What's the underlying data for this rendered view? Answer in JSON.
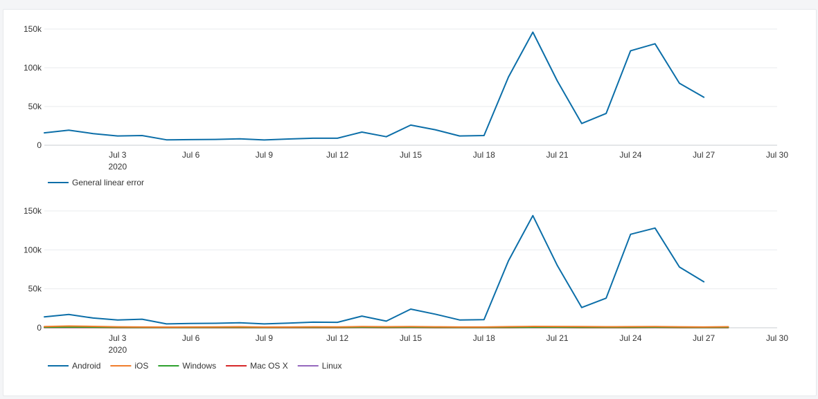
{
  "chart_data": [
    {
      "type": "line",
      "x_ticks": [
        "Jul 3",
        "Jul 6",
        "Jul 9",
        "Jul 12",
        "Jul 15",
        "Jul 18",
        "Jul 21",
        "Jul 24",
        "Jul 27",
        "Jul 30"
      ],
      "x_year_label": "2020",
      "y_ticks": [
        "0",
        "50k",
        "100k",
        "150k"
      ],
      "ylim": [
        0,
        150000
      ],
      "xlim": [
        "Jun 30",
        "Jul 30"
      ],
      "grid": true,
      "legend_position": "bottom-left",
      "series": [
        {
          "name": "General linear error",
          "color": "#0b6ea8",
          "x": [
            "Jun 30",
            "Jul 1",
            "Jul 2",
            "Jul 3",
            "Jul 4",
            "Jul 5",
            "Jul 6",
            "Jul 7",
            "Jul 8",
            "Jul 9",
            "Jul 10",
            "Jul 11",
            "Jul 12",
            "Jul 13",
            "Jul 14",
            "Jul 15",
            "Jul 16",
            "Jul 17",
            "Jul 18",
            "Jul 19",
            "Jul 20",
            "Jul 21",
            "Jul 22",
            "Jul 23",
            "Jul 24",
            "Jul 25",
            "Jul 26",
            "Jul 27",
            "Jul 28"
          ],
          "values": [
            16000,
            19500,
            15000,
            12000,
            12500,
            7000,
            7200,
            7500,
            8200,
            6800,
            8000,
            9000,
            9000,
            17000,
            11000,
            26000,
            20000,
            12000,
            12500,
            88000,
            146000,
            83000,
            28000,
            41000,
            122000,
            131000,
            80000,
            62000,
            null
          ]
        }
      ]
    },
    {
      "type": "line",
      "x_ticks": [
        "Jul 3",
        "Jul 6",
        "Jul 9",
        "Jul 12",
        "Jul 15",
        "Jul 18",
        "Jul 21",
        "Jul 24",
        "Jul 27",
        "Jul 30"
      ],
      "x_year_label": "2020",
      "y_ticks": [
        "0",
        "50k",
        "100k",
        "150k"
      ],
      "ylim": [
        0,
        150000
      ],
      "xlim": [
        "Jun 30",
        "Jul 30"
      ],
      "grid": true,
      "legend_position": "bottom-left",
      "series": [
        {
          "name": "Android",
          "color": "#0b6ea8",
          "x": [
            "Jun 30",
            "Jul 1",
            "Jul 2",
            "Jul 3",
            "Jul 4",
            "Jul 5",
            "Jul 6",
            "Jul 7",
            "Jul 8",
            "Jul 9",
            "Jul 10",
            "Jul 11",
            "Jul 12",
            "Jul 13",
            "Jul 14",
            "Jul 15",
            "Jul 16",
            "Jul 17",
            "Jul 18",
            "Jul 19",
            "Jul 20",
            "Jul 21",
            "Jul 22",
            "Jul 23",
            "Jul 24",
            "Jul 25",
            "Jul 26",
            "Jul 27",
            "Jul 28"
          ],
          "values": [
            14000,
            17000,
            12500,
            10000,
            11000,
            5000,
            5500,
            5800,
            6500,
            5000,
            6000,
            7200,
            7000,
            15000,
            8500,
            24000,
            17500,
            10000,
            10500,
            86000,
            144000,
            80000,
            26000,
            38000,
            120000,
            128000,
            78000,
            59000,
            null
          ]
        },
        {
          "name": "iOS",
          "color": "#f07c2a",
          "x": [
            "Jun 30",
            "Jul 1",
            "Jul 2",
            "Jul 3",
            "Jul 4",
            "Jul 5",
            "Jul 6",
            "Jul 7",
            "Jul 8",
            "Jul 9",
            "Jul 10",
            "Jul 11",
            "Jul 12",
            "Jul 13",
            "Jul 14",
            "Jul 15",
            "Jul 16",
            "Jul 17",
            "Jul 18",
            "Jul 19",
            "Jul 20",
            "Jul 21",
            "Jul 22",
            "Jul 23",
            "Jul 24",
            "Jul 25",
            "Jul 26",
            "Jul 27",
            "Jul 28"
          ],
          "values": [
            1500,
            2200,
            1800,
            1200,
            1000,
            900,
            1000,
            1100,
            1300,
            900,
            1000,
            1200,
            1100,
            1500,
            1300,
            1500,
            1200,
            1000,
            1000,
            1400,
            1800,
            1700,
            1500,
            1300,
            1400,
            1500,
            1200,
            1000,
            1300
          ]
        },
        {
          "name": "Windows",
          "color": "#2ca02c",
          "x": [
            "Jun 30",
            "Jul 1",
            "Jul 2",
            "Jul 3",
            "Jul 4",
            "Jul 5",
            "Jul 6",
            "Jul 7",
            "Jul 8",
            "Jul 9",
            "Jul 10",
            "Jul 11",
            "Jul 12",
            "Jul 13",
            "Jul 14",
            "Jul 15",
            "Jul 16",
            "Jul 17",
            "Jul 18",
            "Jul 19",
            "Jul 20",
            "Jul 21",
            "Jul 22",
            "Jul 23",
            "Jul 24",
            "Jul 25",
            "Jul 26",
            "Jul 27",
            "Jul 28"
          ],
          "values": [
            600,
            800,
            700,
            500,
            400,
            400,
            400,
            500,
            500,
            400,
            500,
            500,
            500,
            600,
            500,
            600,
            500,
            400,
            400,
            500,
            600,
            600,
            500,
            500,
            500,
            600,
            500,
            400,
            500
          ]
        },
        {
          "name": "Mac OS X",
          "color": "#d62728",
          "x": [
            "Jun 30",
            "Jul 1",
            "Jul 2",
            "Jul 3",
            "Jul 4",
            "Jul 5",
            "Jul 6",
            "Jul 7",
            "Jul 8",
            "Jul 9",
            "Jul 10",
            "Jul 11",
            "Jul 12",
            "Jul 13",
            "Jul 14",
            "Jul 15",
            "Jul 16",
            "Jul 17",
            "Jul 18",
            "Jul 19",
            "Jul 20",
            "Jul 21",
            "Jul 22",
            "Jul 23",
            "Jul 24",
            "Jul 25",
            "Jul 26",
            "Jul 27",
            "Jul 28"
          ],
          "values": [
            400,
            500,
            400,
            300,
            300,
            300,
            300,
            300,
            300,
            300,
            300,
            300,
            300,
            400,
            300,
            400,
            300,
            300,
            300,
            300,
            400,
            400,
            300,
            300,
            300,
            400,
            300,
            300,
            300
          ]
        },
        {
          "name": "Linux",
          "color": "#9467bd",
          "x": [
            "Jun 30",
            "Jul 1",
            "Jul 2",
            "Jul 3",
            "Jul 4",
            "Jul 5",
            "Jul 6",
            "Jul 7",
            "Jul 8",
            "Jul 9",
            "Jul 10",
            "Jul 11",
            "Jul 12",
            "Jul 13",
            "Jul 14",
            "Jul 15",
            "Jul 16",
            "Jul 17",
            "Jul 18",
            "Jul 19",
            "Jul 20",
            "Jul 21",
            "Jul 22",
            "Jul 23",
            "Jul 24",
            "Jul 25",
            "Jul 26",
            "Jul 27",
            "Jul 28"
          ],
          "values": [
            200,
            300,
            200,
            200,
            200,
            200,
            200,
            200,
            200,
            200,
            200,
            200,
            200,
            200,
            200,
            200,
            200,
            200,
            200,
            200,
            200,
            200,
            200,
            200,
            200,
            200,
            200,
            200,
            200
          ]
        }
      ]
    }
  ]
}
